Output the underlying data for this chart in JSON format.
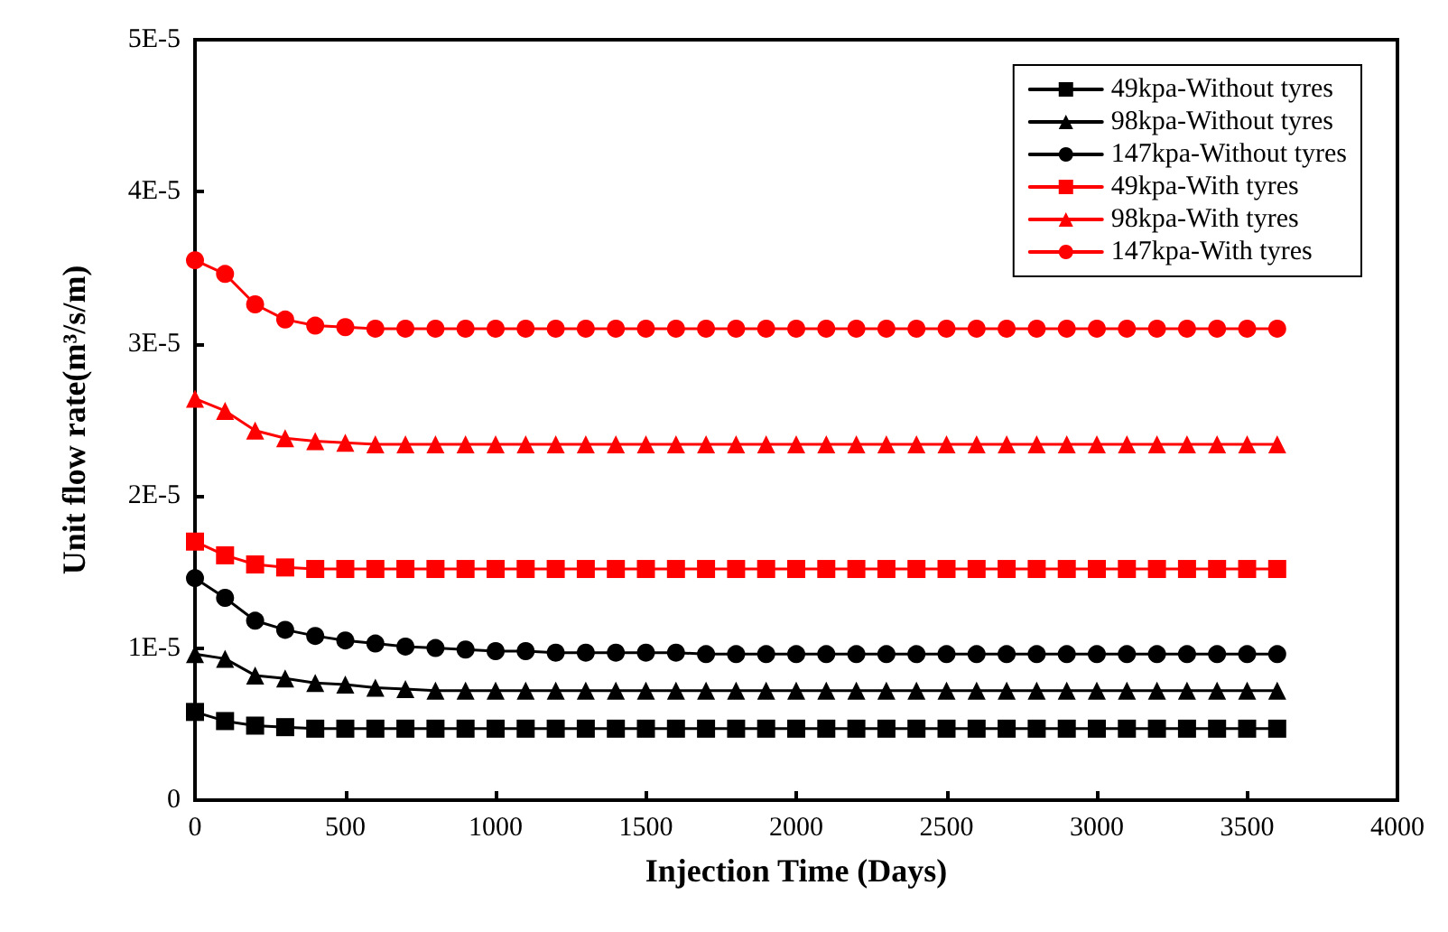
{
  "chart_data": {
    "type": "line",
    "xlabel": "Injection Time (Days)",
    "ylabel": "Unit flow rate(m³/s/m)",
    "x": [
      0,
      100,
      200,
      300,
      400,
      500,
      600,
      700,
      800,
      900,
      1000,
      1100,
      1200,
      1300,
      1400,
      1500,
      1600,
      1700,
      1800,
      1900,
      2000,
      2100,
      2200,
      2300,
      2400,
      2500,
      2600,
      2700,
      2800,
      2900,
      3000,
      3100,
      3200,
      3300,
      3400,
      3500,
      3600
    ],
    "series": [
      {
        "name": "49kpa-Without tyres",
        "color": "#000000",
        "marker": "square",
        "values": [
          5.8e-06,
          5.2e-06,
          4.9e-06,
          4.8e-06,
          4.7e-06,
          4.7e-06,
          4.7e-06,
          4.7e-06,
          4.7e-06,
          4.7e-06,
          4.7e-06,
          4.7e-06,
          4.7e-06,
          4.7e-06,
          4.7e-06,
          4.7e-06,
          4.7e-06,
          4.7e-06,
          4.7e-06,
          4.7e-06,
          4.7e-06,
          4.7e-06,
          4.7e-06,
          4.7e-06,
          4.7e-06,
          4.7e-06,
          4.7e-06,
          4.7e-06,
          4.7e-06,
          4.7e-06,
          4.7e-06,
          4.7e-06,
          4.7e-06,
          4.7e-06,
          4.7e-06,
          4.7e-06,
          4.7e-06
        ]
      },
      {
        "name": "98kpa-Without tyres",
        "color": "#000000",
        "marker": "triangle",
        "values": [
          9.6e-06,
          9.3e-06,
          8.2e-06,
          8e-06,
          7.7e-06,
          7.6e-06,
          7.4e-06,
          7.3e-06,
          7.2e-06,
          7.2e-06,
          7.2e-06,
          7.2e-06,
          7.2e-06,
          7.2e-06,
          7.2e-06,
          7.2e-06,
          7.2e-06,
          7.2e-06,
          7.2e-06,
          7.2e-06,
          7.2e-06,
          7.2e-06,
          7.2e-06,
          7.2e-06,
          7.2e-06,
          7.2e-06,
          7.2e-06,
          7.2e-06,
          7.2e-06,
          7.2e-06,
          7.2e-06,
          7.2e-06,
          7.2e-06,
          7.2e-06,
          7.2e-06,
          7.2e-06,
          7.2e-06
        ]
      },
      {
        "name": "147kpa-Without tyres",
        "color": "#000000",
        "marker": "circle",
        "values": [
          1.46e-05,
          1.33e-05,
          1.18e-05,
          1.12e-05,
          1.08e-05,
          1.05e-05,
          1.03e-05,
          1.01e-05,
          1e-05,
          9.9e-06,
          9.8e-06,
          9.8e-06,
          9.7e-06,
          9.7e-06,
          9.7e-06,
          9.7e-06,
          9.7e-06,
          9.6e-06,
          9.6e-06,
          9.6e-06,
          9.6e-06,
          9.6e-06,
          9.6e-06,
          9.6e-06,
          9.6e-06,
          9.6e-06,
          9.6e-06,
          9.6e-06,
          9.6e-06,
          9.6e-06,
          9.6e-06,
          9.6e-06,
          9.6e-06,
          9.6e-06,
          9.6e-06,
          9.6e-06,
          9.6e-06
        ]
      },
      {
        "name": "49kpa-With tyres",
        "color": "#ff0000",
        "marker": "square",
        "values": [
          1.7e-05,
          1.61e-05,
          1.55e-05,
          1.53e-05,
          1.52e-05,
          1.52e-05,
          1.52e-05,
          1.52e-05,
          1.52e-05,
          1.52e-05,
          1.52e-05,
          1.52e-05,
          1.52e-05,
          1.52e-05,
          1.52e-05,
          1.52e-05,
          1.52e-05,
          1.52e-05,
          1.52e-05,
          1.52e-05,
          1.52e-05,
          1.52e-05,
          1.52e-05,
          1.52e-05,
          1.52e-05,
          1.52e-05,
          1.52e-05,
          1.52e-05,
          1.52e-05,
          1.52e-05,
          1.52e-05,
          1.52e-05,
          1.52e-05,
          1.52e-05,
          1.52e-05,
          1.52e-05,
          1.52e-05
        ]
      },
      {
        "name": "98kpa-With tyres",
        "color": "#ff0000",
        "marker": "triangle",
        "values": [
          2.64e-05,
          2.56e-05,
          2.43e-05,
          2.38e-05,
          2.36e-05,
          2.35e-05,
          2.34e-05,
          2.34e-05,
          2.34e-05,
          2.34e-05,
          2.34e-05,
          2.34e-05,
          2.34e-05,
          2.34e-05,
          2.34e-05,
          2.34e-05,
          2.34e-05,
          2.34e-05,
          2.34e-05,
          2.34e-05,
          2.34e-05,
          2.34e-05,
          2.34e-05,
          2.34e-05,
          2.34e-05,
          2.34e-05,
          2.34e-05,
          2.34e-05,
          2.34e-05,
          2.34e-05,
          2.34e-05,
          2.34e-05,
          2.34e-05,
          2.34e-05,
          2.34e-05,
          2.34e-05,
          2.34e-05
        ]
      },
      {
        "name": "147kpa-With tyres",
        "color": "#ff0000",
        "marker": "circle",
        "values": [
          3.55e-05,
          3.46e-05,
          3.26e-05,
          3.16e-05,
          3.12e-05,
          3.11e-05,
          3.1e-05,
          3.1e-05,
          3.1e-05,
          3.1e-05,
          3.1e-05,
          3.1e-05,
          3.1e-05,
          3.1e-05,
          3.1e-05,
          3.1e-05,
          3.1e-05,
          3.1e-05,
          3.1e-05,
          3.1e-05,
          3.1e-05,
          3.1e-05,
          3.1e-05,
          3.1e-05,
          3.1e-05,
          3.1e-05,
          3.1e-05,
          3.1e-05,
          3.1e-05,
          3.1e-05,
          3.1e-05,
          3.1e-05,
          3.1e-05,
          3.1e-05,
          3.1e-05,
          3.1e-05,
          3.1e-05
        ]
      }
    ],
    "xlim": [
      0,
      4000
    ],
    "xticks": [
      0,
      500,
      1000,
      1500,
      2000,
      2500,
      3000,
      3500,
      4000
    ],
    "ylim": [
      0,
      5e-05
    ],
    "yticks": [
      0,
      {
        "value": 1e-05,
        "label": "1E-5"
      },
      {
        "value": 2e-05,
        "label": "2E-5"
      },
      {
        "value": 3e-05,
        "label": "3E-5"
      },
      {
        "value": 4e-05,
        "label": "4E-5"
      },
      {
        "value": 5e-05,
        "label": "5E-5"
      }
    ],
    "grid": false,
    "legend": "top right",
    "line_style": "solid"
  }
}
